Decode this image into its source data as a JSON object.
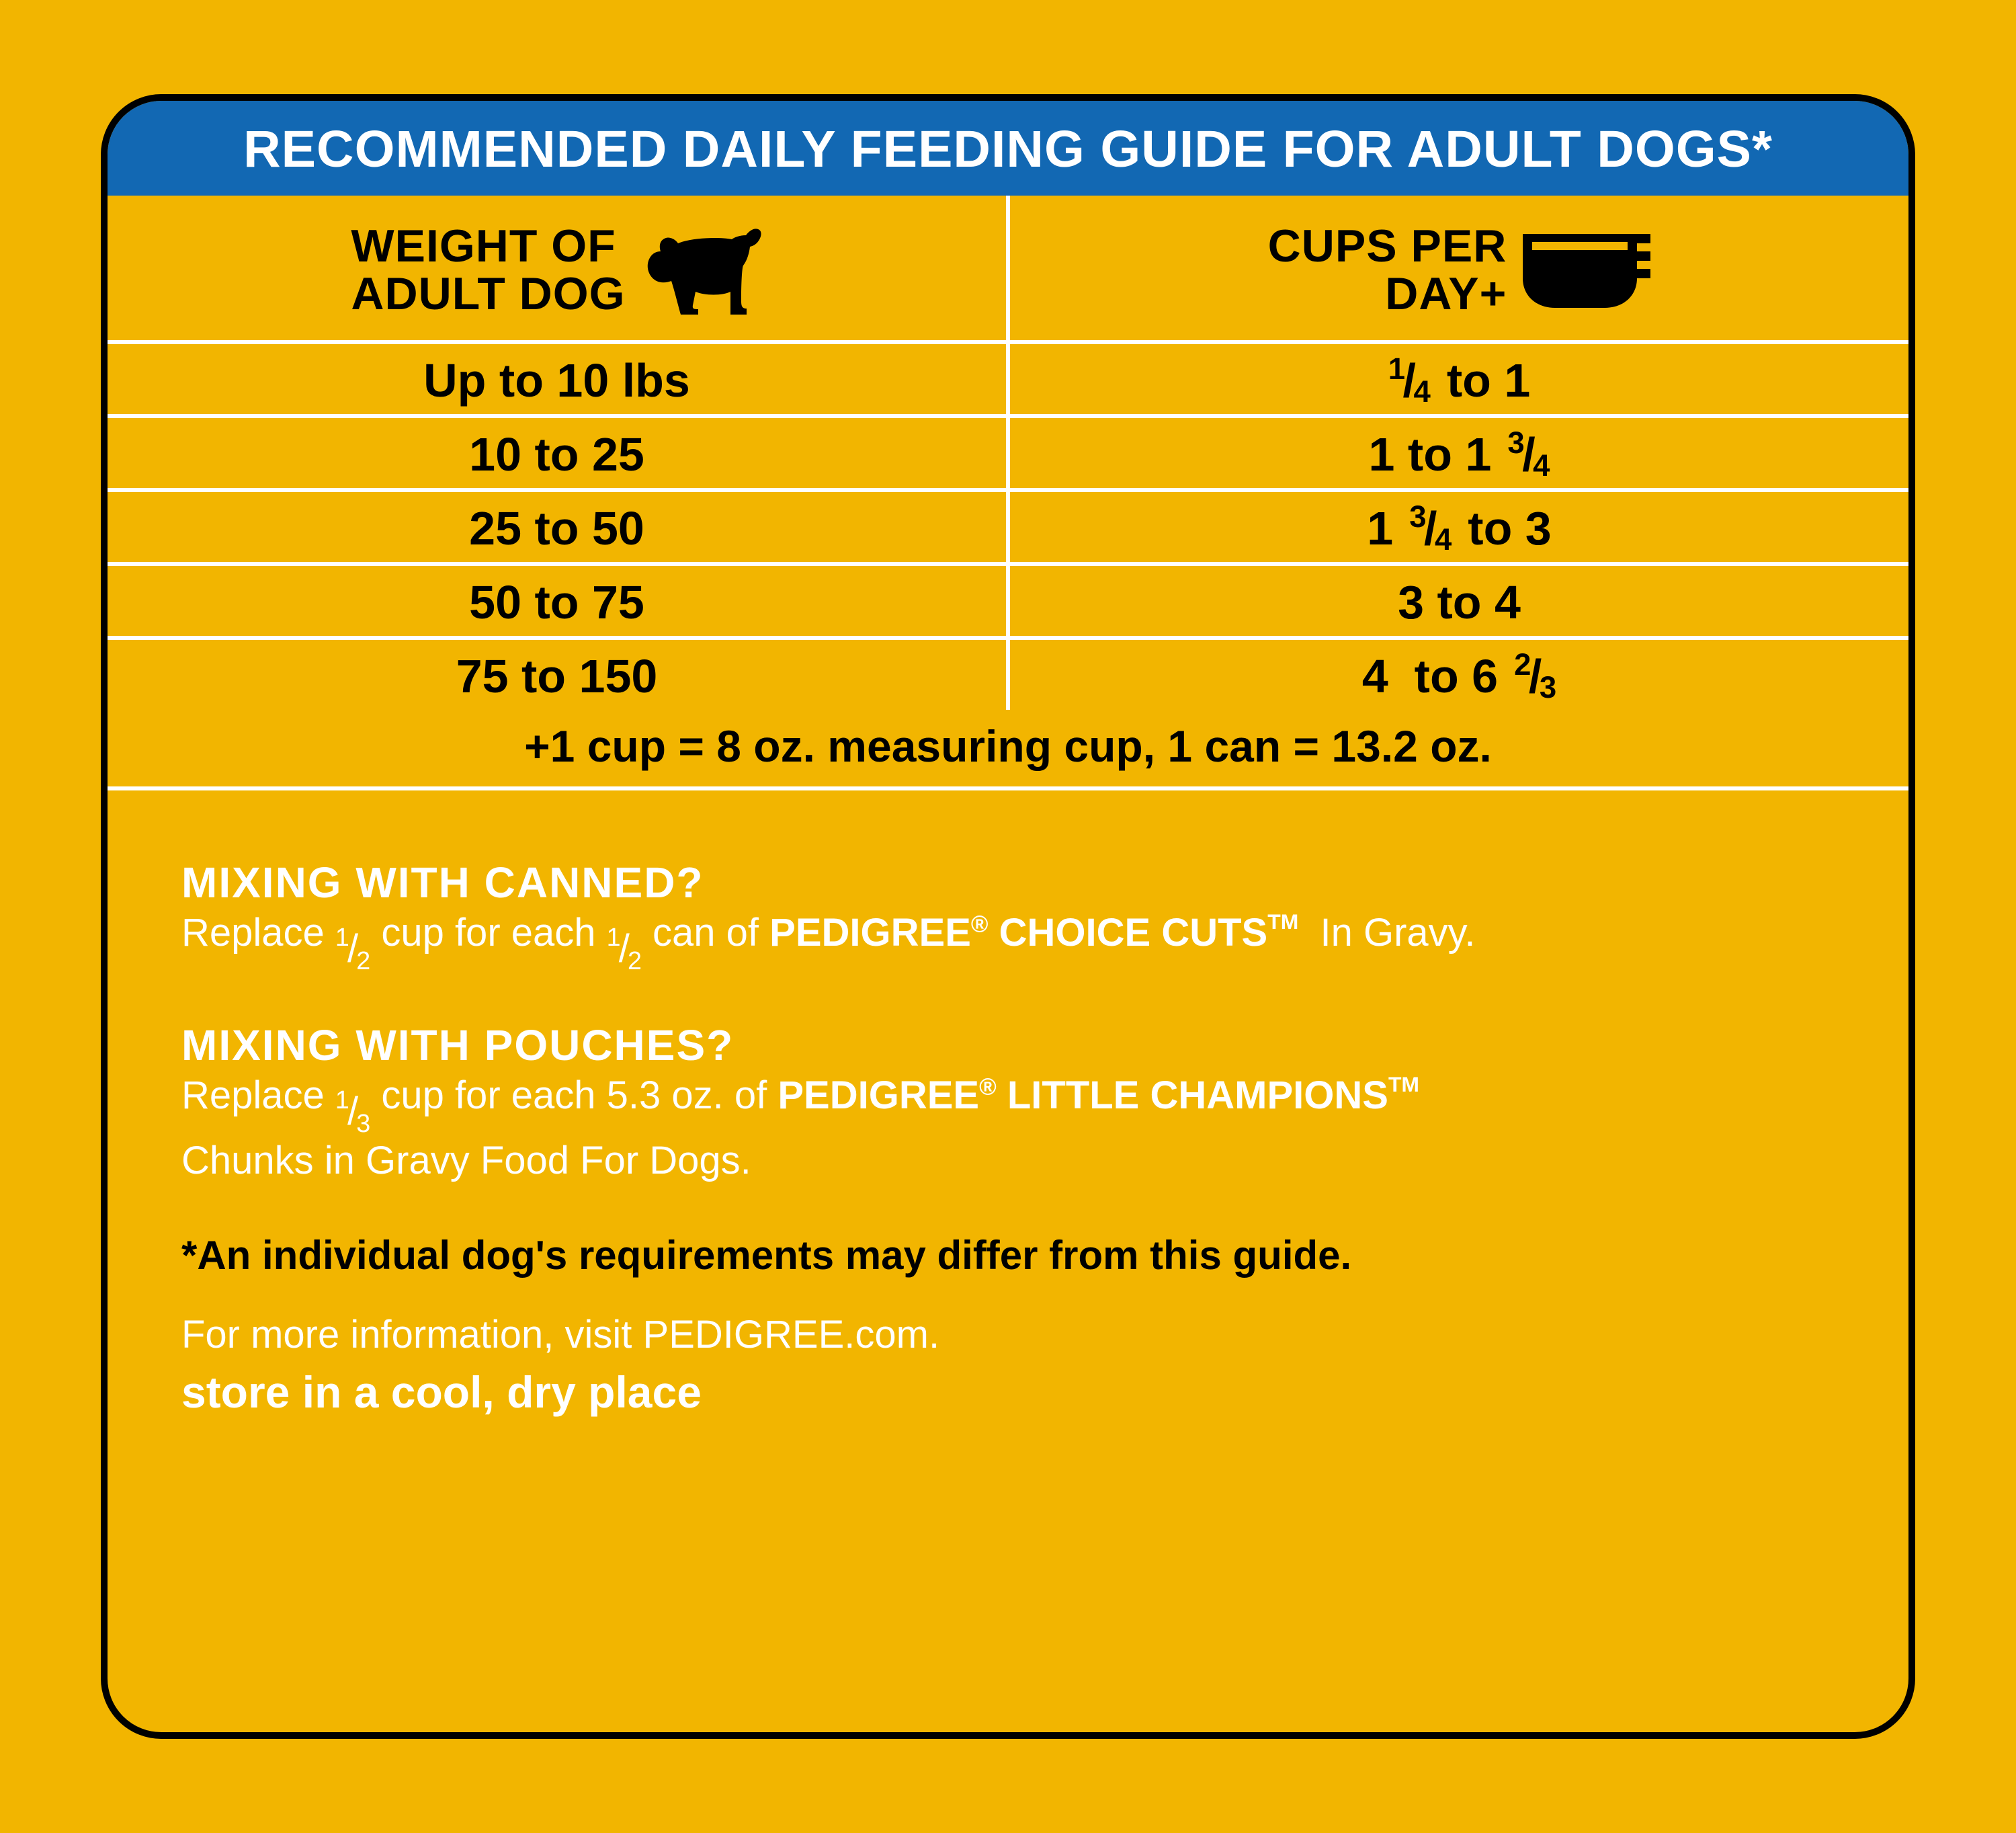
{
  "colors": {
    "background": "#f2b500",
    "header_bg": "#1268b3",
    "header_text": "#ffffff",
    "border": "#000000",
    "divider": "#ffffff",
    "body_text_dark": "#000000",
    "body_text_light": "#ffffff"
  },
  "title": "RECOMMENDED DAILY FEEDING GUIDE FOR ADULT DOGS*",
  "table": {
    "col1_header_l1": "WEIGHT OF",
    "col1_header_l2": "ADULT DOG",
    "col2_header_l1": "CUPS PER",
    "col2_header_l2": "DAY+",
    "rows": [
      {
        "weight": "Up to 10 lbs",
        "cups_html": "<span class='frac'><span class='n'>1</span><span class='s'>/</span><span class='d'>4</span></span> to 1"
      },
      {
        "weight": "10 to 25",
        "cups_html": "1 to 1<span class='frac'><span class='n'>3</span><span class='s'>/</span><span class='d'>4</span></span>"
      },
      {
        "weight": "25 to 50",
        "cups_html": "1<span class='frac'><span class='n'>3</span><span class='s'>/</span><span class='d'>4</span></span> to 3"
      },
      {
        "weight": "50 to 75",
        "cups_html": "3 to 4"
      },
      {
        "weight": "75 to 150",
        "cups_html": "4&nbsp; to 6<span class='frac'><span class='n'>2</span><span class='s'>/</span><span class='d'>3</span></span>"
      }
    ],
    "footnote": "+1 cup = 8 oz. measuring cup, 1 can = 13.2 oz."
  },
  "notes": {
    "canned_head": "MIXING WITH CANNED?",
    "canned_body_html": "Replace <span class='frac'><span class='n'>1</span><span class='s'>/</span><span class='d'>2</span></span> cup for each <span class='frac'><span class='n'>1</span><span class='s'>/</span><span class='d'>2</span></span> can of <span class='brand'>PEDIGREE<sup class='reg'>®</sup> CHOICE CUTS<sup class='tm'>TM</sup></span>&nbsp; In Gravy.",
    "pouches_head": "MIXING WITH POUCHES?",
    "pouches_body_html": "Replace <span class='frac'><span class='n'>1</span><span class='s'>/</span><span class='d'>3</span></span> cup for each 5.3 oz. of <span class='brand'>PEDIGREE<sup class='reg'>®</sup> LITTLE CHAMPIONS<sup class='tm'>TM</sup></span><br>Chunks in Gravy Food For Dogs.",
    "disclaimer": "*An individual dog's requirements may differ from this guide.",
    "info_line": "For more information, visit PEDIGREE.com.",
    "storage": "store in a cool, dry place"
  }
}
